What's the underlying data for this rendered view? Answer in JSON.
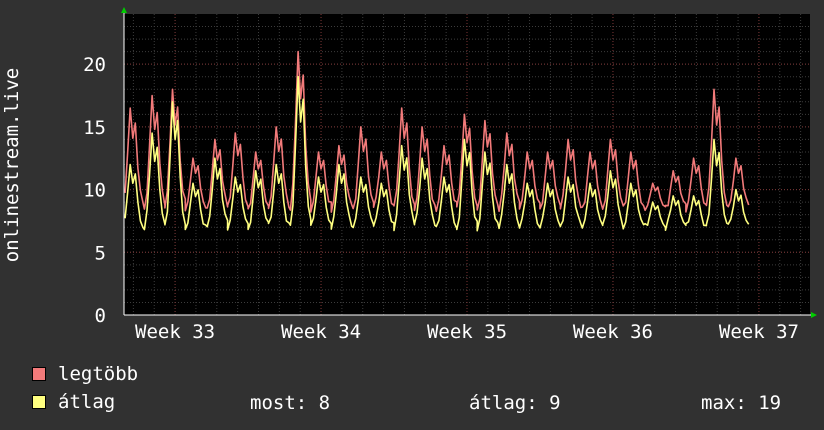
{
  "chart_data": {
    "type": "line",
    "ylabel": "onlinestream.live",
    "ylim": [
      0,
      24
    ],
    "yticks": [
      0,
      5,
      10,
      15,
      20
    ],
    "xlim": [
      32.65,
      37.35
    ],
    "x_tick_labels": [
      {
        "x": 33,
        "label": "Week 33"
      },
      {
        "x": 34,
        "label": "Week 34"
      },
      {
        "x": 35,
        "label": "Week 35"
      },
      {
        "x": 36,
        "label": "Week 36"
      },
      {
        "x": 37,
        "label": "Week 37"
      }
    ],
    "grid": true,
    "series": [
      {
        "name": "legtöbb",
        "color": "#f27a7a",
        "daily_points": [
          [
            32.71,
            16.5
          ],
          [
            32.86,
            17.5
          ],
          [
            33.0,
            18.0
          ],
          [
            33.14,
            12.5
          ],
          [
            33.29,
            14.0
          ],
          [
            33.43,
            14.5
          ],
          [
            33.57,
            13.0
          ],
          [
            33.71,
            15.0
          ],
          [
            33.86,
            21.0
          ],
          [
            34.0,
            13.0
          ],
          [
            34.14,
            13.5
          ],
          [
            34.29,
            15.0
          ],
          [
            34.43,
            13.0
          ],
          [
            34.57,
            16.5
          ],
          [
            34.71,
            15.0
          ],
          [
            34.86,
            13.5
          ],
          [
            35.0,
            16.0
          ],
          [
            35.14,
            15.5
          ],
          [
            35.29,
            14.5
          ],
          [
            35.43,
            13.0
          ],
          [
            35.57,
            13.0
          ],
          [
            35.71,
            14.0
          ],
          [
            35.86,
            13.0
          ],
          [
            36.0,
            14.0
          ],
          [
            36.14,
            13.0
          ],
          [
            36.29,
            10.5
          ],
          [
            36.43,
            11.5
          ],
          [
            36.57,
            12.5
          ],
          [
            36.71,
            18.0
          ],
          [
            36.86,
            12.5
          ]
        ],
        "baseline": 8.5
      },
      {
        "name": "átlag",
        "color": "#ffff80",
        "daily_points": [
          [
            32.71,
            12.0
          ],
          [
            32.86,
            14.5
          ],
          [
            33.0,
            17.0
          ],
          [
            33.14,
            10.5
          ],
          [
            33.29,
            12.5
          ],
          [
            33.43,
            11.0
          ],
          [
            33.57,
            11.5
          ],
          [
            33.71,
            12.0
          ],
          [
            33.86,
            19.0
          ],
          [
            34.0,
            11.0
          ],
          [
            34.14,
            12.0
          ],
          [
            34.29,
            11.0
          ],
          [
            34.43,
            10.5
          ],
          [
            34.57,
            13.5
          ],
          [
            34.71,
            12.5
          ],
          [
            34.86,
            11.0
          ],
          [
            35.0,
            14.0
          ],
          [
            35.14,
            13.0
          ],
          [
            35.29,
            12.0
          ],
          [
            35.43,
            10.5
          ],
          [
            35.57,
            10.5
          ],
          [
            35.71,
            11.0
          ],
          [
            35.86,
            10.5
          ],
          [
            36.0,
            11.5
          ],
          [
            36.14,
            10.5
          ],
          [
            36.29,
            9.0
          ],
          [
            36.43,
            9.5
          ],
          [
            36.57,
            9.5
          ],
          [
            36.71,
            14.0
          ],
          [
            36.86,
            10.0
          ]
        ],
        "baseline": 7.0
      }
    ]
  },
  "legend": [
    {
      "label": "legtöbb",
      "color": "#f27a7a"
    },
    {
      "label": "átlag",
      "color": "#ffff80"
    }
  ],
  "stats": {
    "most": "most: 8",
    "atlag": "átlag: 9",
    "max": "max: 19"
  }
}
